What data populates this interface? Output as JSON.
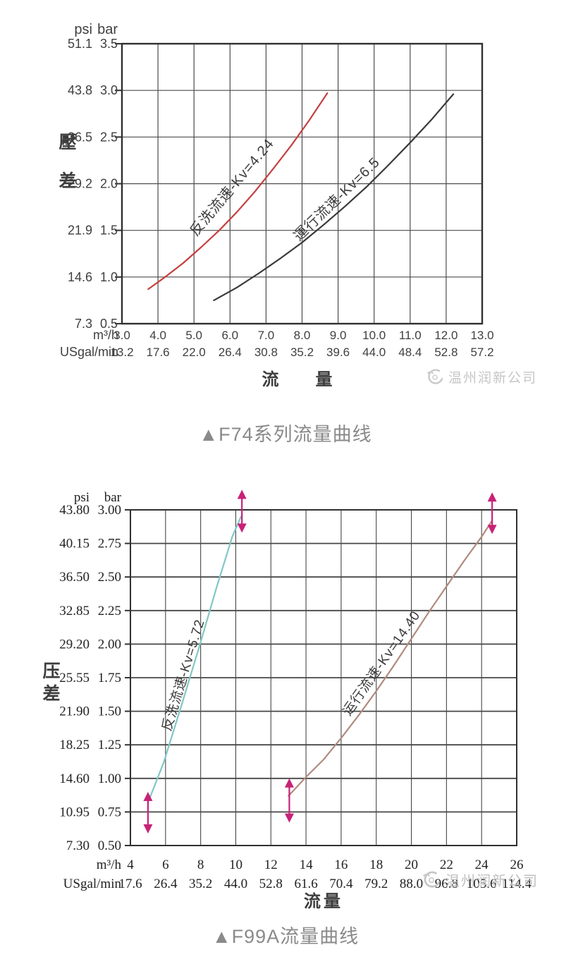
{
  "captions": {
    "f74": "▲F74系列流量曲线",
    "f99a": "▲F99A流量曲线"
  },
  "watermark": {
    "text": "温州润新公司",
    "color": "#c6c6c6"
  },
  "chart_data": [
    {
      "type": "line",
      "name": "F74",
      "caption": "▲F74系列流量曲线",
      "xlabel": "流　量",
      "ylabel": "壓差",
      "y_units": [
        "psi",
        "bar"
      ],
      "x_units": [
        "m³/h",
        "USgal/min"
      ],
      "xlim": [
        3,
        13
      ],
      "ylim": [
        0.5,
        3.5
      ],
      "grid": true,
      "y_ticks": {
        "psi": [
          "51.1",
          "43.8",
          "36.5",
          "29.2",
          "21.9",
          "14.6",
          "7.3"
        ],
        "bar": [
          "3.5",
          "3.0",
          "2.5",
          "2.0",
          "1.5",
          "1.0",
          "0.5"
        ]
      },
      "x_ticks": {
        "m3h": [
          "3.0",
          "4.0",
          "5.0",
          "6.0",
          "7.0",
          "8.0",
          "9.0",
          "10.0",
          "11.0",
          "12.0",
          "13.0"
        ],
        "usgal": [
          "13.2",
          "17.6",
          "22.0",
          "26.4",
          "30.8",
          "35.2",
          "39.6",
          "44.0",
          "48.4",
          "52.8",
          "57.2"
        ]
      },
      "series": [
        {
          "name": "反洗流速-Kv=4.24",
          "color": "#c54040",
          "points": [
            [
              3.73,
              0.87
            ],
            [
              4.2,
              1.0
            ],
            [
              4.7,
              1.15
            ],
            [
              5.2,
              1.32
            ],
            [
              5.7,
              1.5
            ],
            [
              6.2,
              1.7
            ],
            [
              6.7,
              1.92
            ],
            [
              7.2,
              2.16
            ],
            [
              7.7,
              2.41
            ],
            [
              8.2,
              2.68
            ],
            [
              8.7,
              2.97
            ]
          ],
          "label_pos": [
            6.15,
            1.93
          ],
          "label_angle": -50
        },
        {
          "name": "運行流速-Kv=6.5",
          "color": "#3a3a3a",
          "points": [
            [
              5.55,
              0.75
            ],
            [
              6.2,
              0.89
            ],
            [
              6.8,
              1.04
            ],
            [
              7.4,
              1.2
            ],
            [
              8.0,
              1.37
            ],
            [
              8.6,
              1.56
            ],
            [
              9.2,
              1.76
            ],
            [
              9.8,
              1.97
            ],
            [
              10.4,
              2.2
            ],
            [
              11.0,
              2.44
            ],
            [
              11.6,
              2.69
            ],
            [
              12.2,
              2.96
            ]
          ],
          "label_pos": [
            9.05,
            1.8
          ],
          "label_angle": -44
        }
      ],
      "arrows": []
    },
    {
      "type": "line",
      "name": "F99A",
      "caption": "▲F99A流量曲线",
      "xlabel": "流量",
      "ylabel": "压差",
      "y_units": [
        "psi",
        "bar"
      ],
      "x_units": [
        "m³/h",
        "USgal/min"
      ],
      "xlim": [
        4,
        26
      ],
      "ylim": [
        0.5,
        3.0
      ],
      "grid": true,
      "y_ticks": {
        "psi": [
          "43.80",
          "40.15",
          "36.50",
          "32.85",
          "29.20",
          "25.55",
          "21.90",
          "18.25",
          "14.60",
          "10.95",
          "7.30"
        ],
        "bar": [
          "3.00",
          "2.75",
          "2.50",
          "2.25",
          "2.00",
          "1.75",
          "1.50",
          "1.25",
          "1.00",
          "0.75",
          "0.50"
        ]
      },
      "x_ticks": {
        "m3h": [
          "4",
          "6",
          "8",
          "10",
          "12",
          "14",
          "16",
          "18",
          "20",
          "22",
          "24",
          "26"
        ],
        "usgal": [
          "17.6",
          "26.4",
          "35.2",
          "44.0",
          "52.8",
          "61.6",
          "70.4",
          "79.2",
          "88.0",
          "96.8",
          "105.6",
          "114.4"
        ]
      },
      "series": [
        {
          "name": "反洗流速-Kv=5.72",
          "color": "#82c7c5",
          "points": [
            [
              5.0,
              0.82
            ],
            [
              5.9,
              1.12
            ],
            [
              6.9,
              1.54
            ],
            [
              7.9,
              1.97
            ],
            [
              8.9,
              2.42
            ],
            [
              9.8,
              2.8
            ],
            [
              10.3,
              2.95
            ]
          ],
          "label_pos": [
            7.25,
            1.76
          ],
          "label_angle": -73
        },
        {
          "name": "运行流速-Kv=14.40",
          "color": "#b18a7d",
          "points": [
            [
              13.0,
              0.87
            ],
            [
              14,
              1.01
            ],
            [
              15,
              1.14
            ],
            [
              16,
              1.3
            ],
            [
              17,
              1.47
            ],
            [
              18,
              1.65
            ],
            [
              19,
              1.84
            ],
            [
              20,
              2.04
            ],
            [
              21,
              2.24
            ],
            [
              22,
              2.43
            ],
            [
              23,
              2.62
            ],
            [
              24,
              2.8
            ],
            [
              24.6,
              2.92
            ]
          ],
          "label_pos": [
            18.5,
            1.84
          ],
          "label_angle": -55
        }
      ],
      "arrow_color": "#c82277",
      "arrows": [
        {
          "x": 5.0,
          "y_top": 0.9,
          "y_bottom": 0.59
        },
        {
          "x": 10.35,
          "y_top": 3.15,
          "y_bottom": 2.83
        },
        {
          "x": 13.05,
          "y_top": 1.0,
          "y_bottom": 0.67
        },
        {
          "x": 24.6,
          "y_top": 3.13,
          "y_bottom": 2.82
        }
      ]
    }
  ]
}
